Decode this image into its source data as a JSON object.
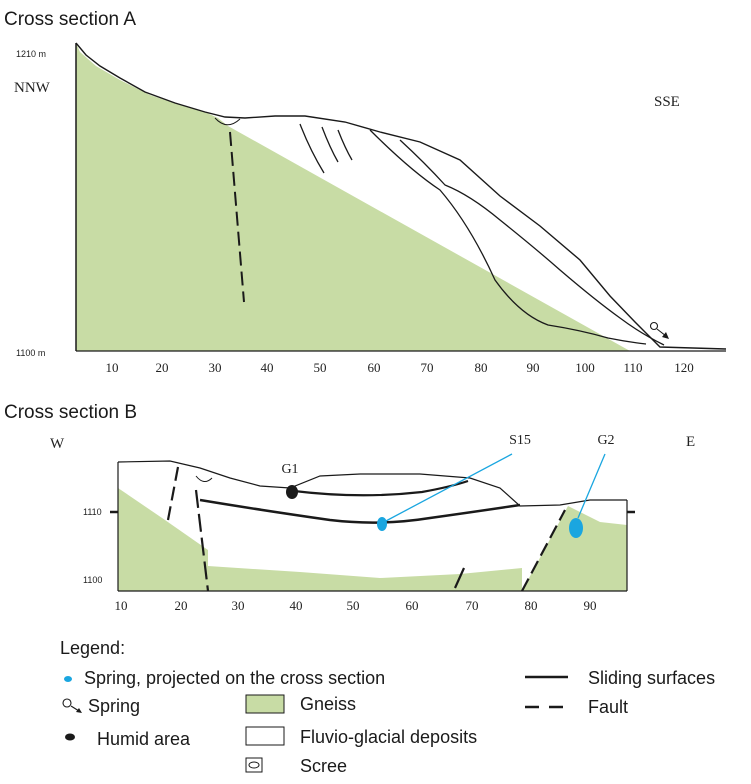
{
  "section_a": {
    "title": "Cross section A",
    "left_direction": "NNW",
    "right_direction": "SSE",
    "elevation_top": "1210 m",
    "elevation_bottom": "1100 m",
    "x_ticks": [
      "10",
      "20",
      "30",
      "40",
      "50",
      "60",
      "70",
      "80",
      "90",
      "100",
      "110",
      "120"
    ]
  },
  "section_b": {
    "title": "Cross section B",
    "left_direction": "W",
    "right_direction": "E",
    "elevation_top": "1110",
    "elevation_bottom": "1100",
    "x_ticks": [
      "10",
      "20",
      "30",
      "40",
      "50",
      "60",
      "70",
      "80",
      "90"
    ],
    "labels": {
      "g1": "G1",
      "s15": "S15",
      "g2": "G2"
    }
  },
  "legend": {
    "title": "Legend:",
    "spring_projected": "Spring, projected on the cross section",
    "spring": "Spring",
    "humid_area": "Humid area",
    "gneiss": "Gneiss",
    "fluvio_glacial": "Fluvio-glacial deposits",
    "scree": "Scree",
    "sliding_surfaces": "Sliding surfaces",
    "fault": "Fault"
  },
  "colors": {
    "gneiss": "#c8dca5",
    "spring": "#1aa6e0",
    "lines": "#1a1a1a"
  }
}
